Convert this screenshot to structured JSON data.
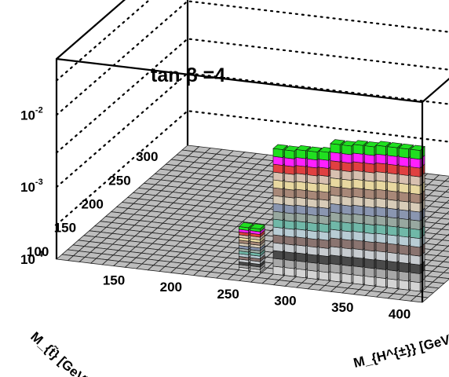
{
  "chart_data": {
    "type": "lego3d",
    "title": "tan β =4",
    "xlabel": "M_{H^{±}} [GeV]",
    "ylabel": "M_{t̃} [GeV]",
    "zlabel": "",
    "x_ticks": [
      "150",
      "200",
      "250",
      "300",
      "350",
      "400"
    ],
    "y_ticks": [
      "100",
      "150",
      "200",
      "250",
      "300"
    ],
    "z_ticks": [
      "10^-4",
      "10^-3",
      "10^-2"
    ],
    "xlim": [
      100,
      420
    ],
    "ylim": [
      80,
      320
    ],
    "zlim": [
      0.0001,
      0.06
    ],
    "zscale": "log",
    "grid": true,
    "bin_width": 10,
    "bars": [
      {
        "x": 250,
        "y": 100,
        "z": 0.0004
      },
      {
        "x": 260,
        "y": 100,
        "z": 0.0004
      },
      {
        "x": 280,
        "y": 100,
        "z": 0.0055
      },
      {
        "x": 290,
        "y": 100,
        "z": 0.0055
      },
      {
        "x": 300,
        "y": 100,
        "z": 0.0058
      },
      {
        "x": 310,
        "y": 100,
        "z": 0.0058
      },
      {
        "x": 320,
        "y": 100,
        "z": 0.006
      },
      {
        "x": 330,
        "y": 100,
        "z": 0.008
      },
      {
        "x": 340,
        "y": 100,
        "z": 0.008
      },
      {
        "x": 350,
        "y": 100,
        "z": 0.0085
      },
      {
        "x": 360,
        "y": 100,
        "z": 0.0085
      },
      {
        "x": 370,
        "y": 100,
        "z": 0.009
      },
      {
        "x": 380,
        "y": 100,
        "z": 0.009
      },
      {
        "x": 390,
        "y": 100,
        "z": 0.009
      },
      {
        "x": 400,
        "y": 100,
        "z": 0.009
      }
    ],
    "color_bands": [
      "#d4d4d4",
      "#a8a8a8",
      "#4a4a4a",
      "#c8ccd0",
      "#8a7470",
      "#b8ccd4",
      "#70b8a8",
      "#98a8a0",
      "#8a96b0",
      "#d8ccb8",
      "#a88878",
      "#e8d8a0",
      "#d8c0b0",
      "#e04040",
      "#ff20ff",
      "#20e020"
    ]
  }
}
